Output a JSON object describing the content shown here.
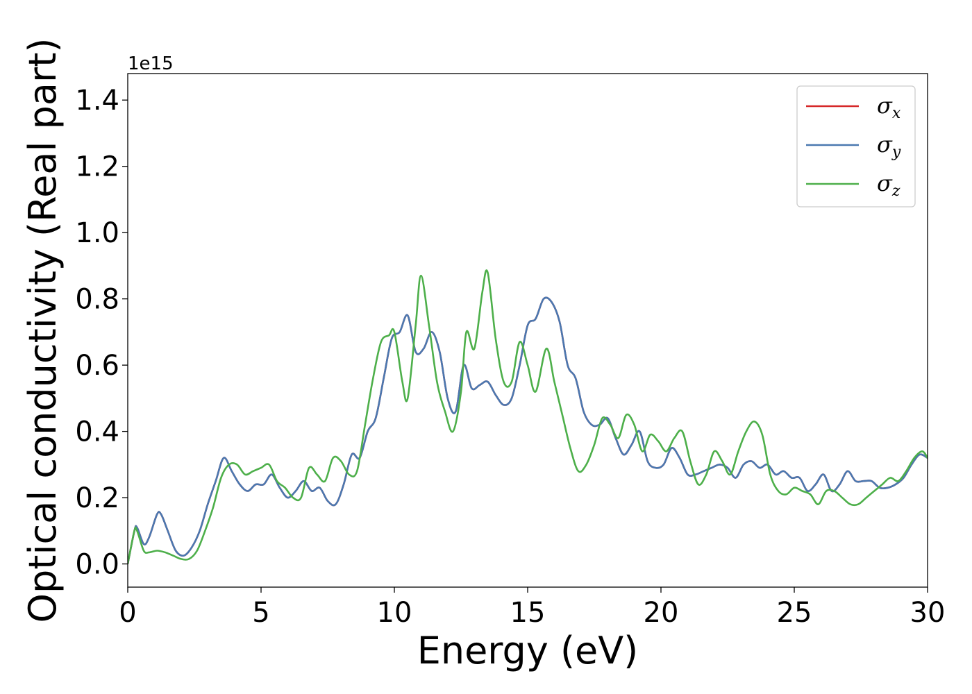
{
  "chart_data": {
    "type": "line",
    "xlabel": "Energy (eV)",
    "ylabel": "Optical conductivity (Real part)",
    "y_offset_text": "1e15",
    "xlim": [
      0,
      30
    ],
    "ylim": [
      -0.07,
      1.48
    ],
    "x_ticks": [
      "0",
      "5",
      "10",
      "15",
      "20",
      "25",
      "30"
    ],
    "y_ticks": [
      "0.0",
      "0.2",
      "0.4",
      "0.6",
      "0.8",
      "1.0",
      "1.2",
      "1.4"
    ],
    "legend_position": "upper right",
    "grid": false,
    "series": [
      {
        "name": "σx",
        "symbol": "σ",
        "subscript": "x",
        "color": "#d62728",
        "points": [
          [
            0,
            0.0
          ],
          [
            0.25,
            0.1
          ],
          [
            0.35,
            0.11
          ],
          [
            0.6,
            0.06
          ],
          [
            0.8,
            0.08
          ],
          [
            1.1,
            0.15
          ],
          [
            1.25,
            0.15
          ],
          [
            1.5,
            0.1
          ],
          [
            1.8,
            0.04
          ],
          [
            2.1,
            0.025
          ],
          [
            2.4,
            0.05
          ],
          [
            2.7,
            0.1
          ],
          [
            3.0,
            0.18
          ],
          [
            3.3,
            0.25
          ],
          [
            3.6,
            0.32
          ],
          [
            3.9,
            0.28
          ],
          [
            4.2,
            0.24
          ],
          [
            4.5,
            0.22
          ],
          [
            4.8,
            0.24
          ],
          [
            5.1,
            0.24
          ],
          [
            5.4,
            0.27
          ],
          [
            5.7,
            0.23
          ],
          [
            6.0,
            0.2
          ],
          [
            6.3,
            0.22
          ],
          [
            6.6,
            0.25
          ],
          [
            6.9,
            0.22
          ],
          [
            7.2,
            0.23
          ],
          [
            7.5,
            0.19
          ],
          [
            7.8,
            0.18
          ],
          [
            8.1,
            0.24
          ],
          [
            8.4,
            0.33
          ],
          [
            8.7,
            0.32
          ],
          [
            9.0,
            0.4
          ],
          [
            9.3,
            0.44
          ],
          [
            9.6,
            0.56
          ],
          [
            9.9,
            0.68
          ],
          [
            10.2,
            0.7
          ],
          [
            10.5,
            0.75
          ],
          [
            10.8,
            0.64
          ],
          [
            11.1,
            0.65
          ],
          [
            11.4,
            0.7
          ],
          [
            11.7,
            0.64
          ],
          [
            12.0,
            0.5
          ],
          [
            12.3,
            0.46
          ],
          [
            12.6,
            0.6
          ],
          [
            12.9,
            0.53
          ],
          [
            13.2,
            0.54
          ],
          [
            13.5,
            0.55
          ],
          [
            13.8,
            0.51
          ],
          [
            14.1,
            0.48
          ],
          [
            14.4,
            0.5
          ],
          [
            14.7,
            0.6
          ],
          [
            15.0,
            0.72
          ],
          [
            15.3,
            0.74
          ],
          [
            15.6,
            0.8
          ],
          [
            15.9,
            0.79
          ],
          [
            16.2,
            0.73
          ],
          [
            16.5,
            0.6
          ],
          [
            16.8,
            0.56
          ],
          [
            17.1,
            0.46
          ],
          [
            17.4,
            0.42
          ],
          [
            17.7,
            0.42
          ],
          [
            18.0,
            0.44
          ],
          [
            18.3,
            0.38
          ],
          [
            18.6,
            0.33
          ],
          [
            18.9,
            0.36
          ],
          [
            19.2,
            0.4
          ],
          [
            19.5,
            0.31
          ],
          [
            19.8,
            0.29
          ],
          [
            20.1,
            0.3
          ],
          [
            20.4,
            0.35
          ],
          [
            20.7,
            0.32
          ],
          [
            21.0,
            0.27
          ],
          [
            21.3,
            0.27
          ],
          [
            21.6,
            0.28
          ],
          [
            21.9,
            0.29
          ],
          [
            22.2,
            0.3
          ],
          [
            22.5,
            0.29
          ],
          [
            22.8,
            0.26
          ],
          [
            23.1,
            0.3
          ],
          [
            23.4,
            0.31
          ],
          [
            23.7,
            0.29
          ],
          [
            24.0,
            0.3
          ],
          [
            24.3,
            0.27
          ],
          [
            24.6,
            0.28
          ],
          [
            24.9,
            0.26
          ],
          [
            25.2,
            0.26
          ],
          [
            25.5,
            0.22
          ],
          [
            25.8,
            0.24
          ],
          [
            26.1,
            0.27
          ],
          [
            26.4,
            0.22
          ],
          [
            26.7,
            0.24
          ],
          [
            27.0,
            0.28
          ],
          [
            27.3,
            0.25
          ],
          [
            27.6,
            0.25
          ],
          [
            27.9,
            0.25
          ],
          [
            28.2,
            0.23
          ],
          [
            28.5,
            0.23
          ],
          [
            28.8,
            0.24
          ],
          [
            29.1,
            0.26
          ],
          [
            29.4,
            0.3
          ],
          [
            29.7,
            0.33
          ],
          [
            30.0,
            0.32
          ]
        ]
      },
      {
        "name": "σy",
        "symbol": "σ",
        "subscript": "y",
        "color": "#4a78b0",
        "points": [
          [
            0,
            0.0
          ],
          [
            0.25,
            0.1
          ],
          [
            0.35,
            0.11
          ],
          [
            0.6,
            0.06
          ],
          [
            0.8,
            0.08
          ],
          [
            1.1,
            0.15
          ],
          [
            1.25,
            0.15
          ],
          [
            1.5,
            0.1
          ],
          [
            1.8,
            0.04
          ],
          [
            2.1,
            0.025
          ],
          [
            2.4,
            0.05
          ],
          [
            2.7,
            0.1
          ],
          [
            3.0,
            0.18
          ],
          [
            3.3,
            0.25
          ],
          [
            3.6,
            0.32
          ],
          [
            3.9,
            0.28
          ],
          [
            4.2,
            0.24
          ],
          [
            4.5,
            0.22
          ],
          [
            4.8,
            0.24
          ],
          [
            5.1,
            0.24
          ],
          [
            5.4,
            0.27
          ],
          [
            5.7,
            0.23
          ],
          [
            6.0,
            0.2
          ],
          [
            6.3,
            0.22
          ],
          [
            6.6,
            0.25
          ],
          [
            6.9,
            0.22
          ],
          [
            7.2,
            0.23
          ],
          [
            7.5,
            0.19
          ],
          [
            7.8,
            0.18
          ],
          [
            8.1,
            0.24
          ],
          [
            8.4,
            0.33
          ],
          [
            8.7,
            0.32
          ],
          [
            9.0,
            0.4
          ],
          [
            9.3,
            0.44
          ],
          [
            9.6,
            0.56
          ],
          [
            9.9,
            0.68
          ],
          [
            10.2,
            0.7
          ],
          [
            10.5,
            0.75
          ],
          [
            10.8,
            0.64
          ],
          [
            11.1,
            0.65
          ],
          [
            11.4,
            0.7
          ],
          [
            11.7,
            0.64
          ],
          [
            12.0,
            0.5
          ],
          [
            12.3,
            0.46
          ],
          [
            12.6,
            0.6
          ],
          [
            12.9,
            0.53
          ],
          [
            13.2,
            0.54
          ],
          [
            13.5,
            0.55
          ],
          [
            13.8,
            0.51
          ],
          [
            14.1,
            0.48
          ],
          [
            14.4,
            0.5
          ],
          [
            14.7,
            0.6
          ],
          [
            15.0,
            0.72
          ],
          [
            15.3,
            0.74
          ],
          [
            15.6,
            0.8
          ],
          [
            15.9,
            0.79
          ],
          [
            16.2,
            0.73
          ],
          [
            16.5,
            0.6
          ],
          [
            16.8,
            0.56
          ],
          [
            17.1,
            0.46
          ],
          [
            17.4,
            0.42
          ],
          [
            17.7,
            0.42
          ],
          [
            18.0,
            0.44
          ],
          [
            18.3,
            0.38
          ],
          [
            18.6,
            0.33
          ],
          [
            18.9,
            0.36
          ],
          [
            19.2,
            0.4
          ],
          [
            19.5,
            0.31
          ],
          [
            19.8,
            0.29
          ],
          [
            20.1,
            0.3
          ],
          [
            20.4,
            0.35
          ],
          [
            20.7,
            0.32
          ],
          [
            21.0,
            0.27
          ],
          [
            21.3,
            0.27
          ],
          [
            21.6,
            0.28
          ],
          [
            21.9,
            0.29
          ],
          [
            22.2,
            0.3
          ],
          [
            22.5,
            0.29
          ],
          [
            22.8,
            0.26
          ],
          [
            23.1,
            0.3
          ],
          [
            23.4,
            0.31
          ],
          [
            23.7,
            0.29
          ],
          [
            24.0,
            0.3
          ],
          [
            24.3,
            0.27
          ],
          [
            24.6,
            0.28
          ],
          [
            24.9,
            0.26
          ],
          [
            25.2,
            0.26
          ],
          [
            25.5,
            0.22
          ],
          [
            25.8,
            0.24
          ],
          [
            26.1,
            0.27
          ],
          [
            26.4,
            0.22
          ],
          [
            26.7,
            0.24
          ],
          [
            27.0,
            0.28
          ],
          [
            27.3,
            0.25
          ],
          [
            27.6,
            0.25
          ],
          [
            27.9,
            0.25
          ],
          [
            28.2,
            0.23
          ],
          [
            28.5,
            0.23
          ],
          [
            28.8,
            0.24
          ],
          [
            29.1,
            0.26
          ],
          [
            29.4,
            0.3
          ],
          [
            29.7,
            0.33
          ],
          [
            30.0,
            0.32
          ]
        ]
      },
      {
        "name": "σz",
        "symbol": "σ",
        "subscript": "z",
        "color": "#4daf4a",
        "points": [
          [
            0,
            0.0
          ],
          [
            0.25,
            0.1
          ],
          [
            0.35,
            0.1
          ],
          [
            0.6,
            0.04
          ],
          [
            0.8,
            0.035
          ],
          [
            1.1,
            0.04
          ],
          [
            1.4,
            0.035
          ],
          [
            1.7,
            0.025
          ],
          [
            2.0,
            0.015
          ],
          [
            2.3,
            0.015
          ],
          [
            2.6,
            0.04
          ],
          [
            2.9,
            0.1
          ],
          [
            3.2,
            0.17
          ],
          [
            3.5,
            0.26
          ],
          [
            3.8,
            0.3
          ],
          [
            4.1,
            0.3
          ],
          [
            4.4,
            0.27
          ],
          [
            4.7,
            0.28
          ],
          [
            5.0,
            0.29
          ],
          [
            5.3,
            0.3
          ],
          [
            5.6,
            0.25
          ],
          [
            5.9,
            0.23
          ],
          [
            6.2,
            0.2
          ],
          [
            6.5,
            0.2
          ],
          [
            6.8,
            0.29
          ],
          [
            7.1,
            0.27
          ],
          [
            7.4,
            0.25
          ],
          [
            7.7,
            0.32
          ],
          [
            8.0,
            0.31
          ],
          [
            8.3,
            0.27
          ],
          [
            8.6,
            0.28
          ],
          [
            8.9,
            0.42
          ],
          [
            9.2,
            0.56
          ],
          [
            9.5,
            0.67
          ],
          [
            9.8,
            0.69
          ],
          [
            10.0,
            0.7
          ],
          [
            10.3,
            0.55
          ],
          [
            10.5,
            0.5
          ],
          [
            10.8,
            0.72
          ],
          [
            11.0,
            0.87
          ],
          [
            11.3,
            0.72
          ],
          [
            11.6,
            0.55
          ],
          [
            11.9,
            0.46
          ],
          [
            12.2,
            0.4
          ],
          [
            12.5,
            0.52
          ],
          [
            12.7,
            0.7
          ],
          [
            13.0,
            0.65
          ],
          [
            13.3,
            0.82
          ],
          [
            13.5,
            0.88
          ],
          [
            13.8,
            0.68
          ],
          [
            14.1,
            0.55
          ],
          [
            14.4,
            0.55
          ],
          [
            14.7,
            0.67
          ],
          [
            15.0,
            0.6
          ],
          [
            15.3,
            0.52
          ],
          [
            15.7,
            0.65
          ],
          [
            16.0,
            0.55
          ],
          [
            16.3,
            0.45
          ],
          [
            16.6,
            0.35
          ],
          [
            16.9,
            0.28
          ],
          [
            17.2,
            0.3
          ],
          [
            17.5,
            0.36
          ],
          [
            17.8,
            0.44
          ],
          [
            18.1,
            0.42
          ],
          [
            18.4,
            0.38
          ],
          [
            18.7,
            0.45
          ],
          [
            19.0,
            0.42
          ],
          [
            19.3,
            0.34
          ],
          [
            19.6,
            0.39
          ],
          [
            19.9,
            0.37
          ],
          [
            20.2,
            0.34
          ],
          [
            20.5,
            0.38
          ],
          [
            20.8,
            0.4
          ],
          [
            21.1,
            0.31
          ],
          [
            21.4,
            0.24
          ],
          [
            21.7,
            0.27
          ],
          [
            22.0,
            0.34
          ],
          [
            22.3,
            0.31
          ],
          [
            22.6,
            0.27
          ],
          [
            22.9,
            0.34
          ],
          [
            23.2,
            0.4
          ],
          [
            23.5,
            0.43
          ],
          [
            23.8,
            0.39
          ],
          [
            24.1,
            0.27
          ],
          [
            24.4,
            0.22
          ],
          [
            24.7,
            0.21
          ],
          [
            25.0,
            0.23
          ],
          [
            25.3,
            0.22
          ],
          [
            25.6,
            0.21
          ],
          [
            25.9,
            0.18
          ],
          [
            26.2,
            0.22
          ],
          [
            26.5,
            0.22
          ],
          [
            26.8,
            0.2
          ],
          [
            27.1,
            0.18
          ],
          [
            27.4,
            0.18
          ],
          [
            27.7,
            0.2
          ],
          [
            28.0,
            0.22
          ],
          [
            28.3,
            0.24
          ],
          [
            28.6,
            0.26
          ],
          [
            28.9,
            0.25
          ],
          [
            29.2,
            0.28
          ],
          [
            29.5,
            0.32
          ],
          [
            29.8,
            0.34
          ],
          [
            30.0,
            0.32
          ]
        ]
      }
    ]
  }
}
